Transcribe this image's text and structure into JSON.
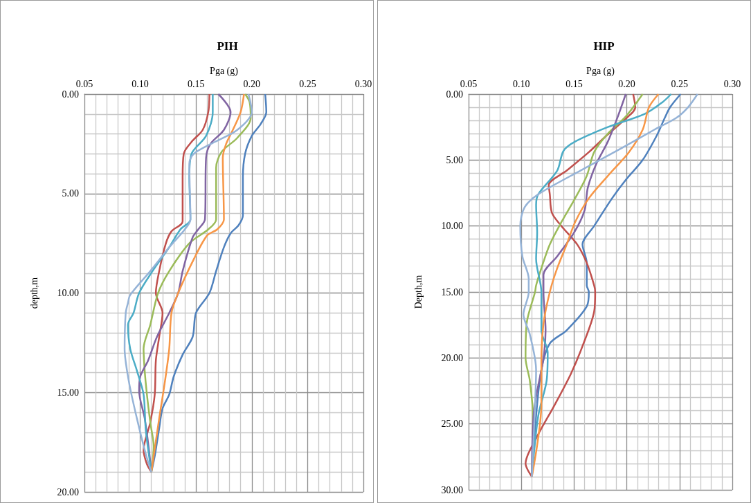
{
  "chart_data": [
    {
      "type": "line",
      "title": "PIH",
      "xlabel": "Pga (g)",
      "ylabel": "depth,m",
      "xlim": [
        0.05,
        0.3
      ],
      "xticks": [
        {
          "value": 0.05,
          "label": "0.05"
        },
        {
          "value": 0.1,
          "label": "0.10"
        },
        {
          "value": 0.15,
          "label": "0.15"
        },
        {
          "value": 0.2,
          "label": "0.20"
        },
        {
          "value": 0.25,
          "label": "0.25"
        },
        {
          "value": 0.3,
          "label": "0.30"
        }
      ],
      "ylim": [
        20,
        0
      ],
      "yticks": [
        {
          "value": 0,
          "label": "0.00"
        },
        {
          "value": 5,
          "label": "5.00"
        },
        {
          "value": 10,
          "label": "10.00"
        },
        {
          "value": 15,
          "label": "15.00"
        },
        {
          "value": 20,
          "label": "20.00"
        }
      ],
      "grid": true,
      "series": [
        {
          "color": "#4f81bd",
          "x": [
            0.212,
            0.213,
            0.208,
            0.2,
            0.194,
            0.192,
            0.192,
            0.188,
            0.181,
            0.175,
            0.168,
            0.162,
            0.15,
            0.147,
            0.138,
            0.13,
            0.126,
            0.12,
            0.117,
            0.113,
            0.11
          ],
          "values": [
            0,
            0.9,
            1.5,
            2.1,
            3.0,
            4.2,
            6.1,
            6.6,
            7.0,
            7.7,
            8.9,
            10.0,
            11.0,
            12.2,
            13.1,
            14.2,
            15.1,
            15.8,
            16.8,
            18.2,
            19.0
          ]
        },
        {
          "color": "#c0504d",
          "x": [
            0.162,
            0.161,
            0.156,
            0.146,
            0.139,
            0.138,
            0.138,
            0.128,
            0.123,
            0.117,
            0.114,
            0.12,
            0.117,
            0.114,
            0.113,
            0.109,
            0.103,
            0.106,
            0.11
          ],
          "values": [
            0,
            0.9,
            1.8,
            2.4,
            3.0,
            4.2,
            6.4,
            6.9,
            7.5,
            8.9,
            10.0,
            11.0,
            12.2,
            13.4,
            15.1,
            16.5,
            17.9,
            18.6,
            19.0
          ]
        },
        {
          "color": "#9bbb59",
          "x": [
            0.194,
            0.198,
            0.199,
            0.187,
            0.173,
            0.168,
            0.168,
            0.161,
            0.144,
            0.126,
            0.116,
            0.109,
            0.103,
            0.104,
            0.106,
            0.109,
            0.112,
            0.11
          ],
          "values": [
            0,
            0.4,
            1.2,
            2.2,
            2.9,
            3.7,
            6.3,
            6.8,
            7.5,
            8.9,
            10.0,
            11.6,
            12.8,
            13.9,
            15.1,
            16.5,
            17.7,
            19.0
          ]
        },
        {
          "color": "#8064a2",
          "x": [
            0.17,
            0.181,
            0.175,
            0.163,
            0.159,
            0.158,
            0.152,
            0.147,
            0.138,
            0.134,
            0.126,
            0.115,
            0.107,
            0.1,
            0.099,
            0.104,
            0.107,
            0.11
          ],
          "values": [
            0,
            0.9,
            1.8,
            2.5,
            3.2,
            6.3,
            6.8,
            7.2,
            8.9,
            10.0,
            11.0,
            12.2,
            13.4,
            14.2,
            14.9,
            16.3,
            17.5,
            19.0
          ]
        },
        {
          "color": "#4bacc6",
          "x": [
            0.165,
            0.165,
            0.159,
            0.146,
            0.144,
            0.145,
            0.136,
            0.126,
            0.111,
            0.099,
            0.094,
            0.089,
            0.091,
            0.097,
            0.103,
            0.105,
            0.11
          ],
          "values": [
            0,
            0.9,
            2.1,
            3.0,
            4.2,
            6.3,
            6.8,
            7.7,
            8.9,
            10.0,
            11.0,
            11.6,
            12.8,
            13.9,
            15.1,
            16.9,
            19.0
          ]
        },
        {
          "color": "#f79646",
          "x": [
            0.193,
            0.19,
            0.183,
            0.177,
            0.174,
            0.175,
            0.169,
            0.16,
            0.148,
            0.134,
            0.128,
            0.126,
            0.122,
            0.117,
            0.11
          ],
          "values": [
            0,
            0.9,
            1.8,
            2.5,
            3.2,
            6.3,
            6.8,
            7.1,
            8.3,
            10.0,
            11.0,
            12.8,
            14.5,
            16.3,
            19.0
          ]
        },
        {
          "color": "#95b3d7",
          "x": [
            0.197,
            0.2,
            0.187,
            0.167,
            0.148,
            0.144,
            0.145,
            0.14,
            0.126,
            0.109,
            0.091,
            0.089,
            0.087,
            0.086,
            0.09,
            0.097,
            0.105,
            0.11
          ],
          "values": [
            0,
            0.9,
            1.8,
            2.4,
            3.0,
            3.5,
            6.3,
            6.8,
            7.7,
            8.9,
            10.1,
            10.5,
            11.0,
            12.8,
            14.5,
            16.3,
            18.1,
            19.0
          ]
        }
      ]
    },
    {
      "type": "line",
      "title": "HIP",
      "xlabel": "Pga (g)",
      "ylabel": "Depth,m",
      "xlim": [
        0.05,
        0.3
      ],
      "xticks": [
        {
          "value": 0.05,
          "label": "0.05"
        },
        {
          "value": 0.1,
          "label": "0.10"
        },
        {
          "value": 0.15,
          "label": "0.15"
        },
        {
          "value": 0.2,
          "label": "0.20"
        },
        {
          "value": 0.25,
          "label": "0.25"
        },
        {
          "value": 0.3,
          "label": "0.30"
        }
      ],
      "ylim": [
        30,
        0
      ],
      "yticks": [
        {
          "value": 0,
          "label": "0.00"
        },
        {
          "value": 5,
          "label": "5.00"
        },
        {
          "value": 10,
          "label": "10.00"
        },
        {
          "value": 15,
          "label": "15.00"
        },
        {
          "value": 20,
          "label": "20.00"
        },
        {
          "value": 25,
          "label": "25.00"
        },
        {
          "value": 30,
          "label": "30.00"
        }
      ],
      "grid": true,
      "series": [
        {
          "color": "#4f81bd",
          "x": [
            0.251,
            0.241,
            0.236,
            0.228,
            0.215,
            0.199,
            0.186,
            0.169,
            0.158,
            0.162,
            0.162,
            0.164,
            0.162,
            0.143,
            0.127,
            0.119,
            0.114,
            0.11
          ],
          "values": [
            0,
            1.0,
            1.8,
            3.2,
            5.0,
            6.5,
            7.9,
            10.0,
            11.4,
            12.8,
            14.5,
            15.0,
            16.1,
            17.9,
            18.9,
            20.9,
            24.4,
            29.0
          ]
        },
        {
          "color": "#c0504d",
          "x": [
            0.206,
            0.208,
            0.197,
            0.18,
            0.164,
            0.143,
            0.126,
            0.127,
            0.129,
            0.138,
            0.153,
            0.162,
            0.169,
            0.17,
            0.169,
            0.158,
            0.147,
            0.132,
            0.114,
            0.104,
            0.11
          ],
          "values": [
            0,
            1.0,
            2.0,
            3.2,
            4.4,
            5.8,
            6.9,
            7.6,
            9.0,
            10.0,
            11.4,
            12.8,
            14.5,
            15.0,
            16.5,
            19.1,
            21.2,
            23.5,
            26.1,
            28.0,
            29.0
          ]
        },
        {
          "color": "#9bbb59",
          "x": [
            0.215,
            0.199,
            0.182,
            0.169,
            0.162,
            0.151,
            0.138,
            0.127,
            0.119,
            0.114,
            0.113,
            0.105,
            0.104,
            0.108,
            0.111,
            0.11
          ],
          "values": [
            0,
            1.7,
            3.0,
            4.4,
            6.2,
            7.9,
            9.7,
            11.4,
            13.2,
            14.5,
            15.0,
            17.4,
            20.0,
            21.7,
            24.4,
            29.0
          ]
        },
        {
          "color": "#8064a2",
          "x": [
            0.199,
            0.191,
            0.182,
            0.171,
            0.163,
            0.16,
            0.15,
            0.134,
            0.121,
            0.121,
            0.123,
            0.121,
            0.112,
            0.11
          ],
          "values": [
            0,
            1.8,
            3.6,
            5.3,
            7.1,
            8.8,
            10.5,
            12.3,
            13.7,
            15.0,
            17.9,
            20.0,
            24.0,
            29.0
          ]
        },
        {
          "color": "#4bacc6",
          "x": [
            0.242,
            0.234,
            0.217,
            0.182,
            0.151,
            0.14,
            0.134,
            0.116,
            0.114,
            0.115,
            0.114,
            0.119,
            0.119,
            0.125,
            0.124,
            0.116,
            0.11
          ],
          "values": [
            0,
            0.6,
            1.5,
            2.5,
            3.6,
            4.3,
            5.8,
            7.6,
            8.4,
            10.5,
            12.5,
            15.0,
            17.9,
            19.6,
            21.7,
            24.4,
            29.0
          ]
        },
        {
          "color": "#f79646",
          "x": [
            0.23,
            0.221,
            0.215,
            0.202,
            0.182,
            0.164,
            0.151,
            0.143,
            0.134,
            0.127,
            0.121,
            0.119,
            0.119,
            0.11
          ],
          "values": [
            0,
            1.0,
            2.7,
            4.4,
            6.2,
            7.9,
            9.7,
            11.4,
            13.2,
            15.0,
            17.4,
            20.0,
            23.5,
            29.0
          ]
        },
        {
          "color": "#95b3d7",
          "x": [
            0.267,
            0.258,
            0.247,
            0.226,
            0.195,
            0.156,
            0.116,
            0.103,
            0.099,
            0.101,
            0.107,
            0.107,
            0.102,
            0.108,
            0.114,
            0.113,
            0.11
          ],
          "values": [
            0,
            1.0,
            1.8,
            2.7,
            4.1,
            5.8,
            7.6,
            8.6,
            10.0,
            12.3,
            14.0,
            15.0,
            16.7,
            18.2,
            20.9,
            23.5,
            29.0
          ]
        }
      ]
    }
  ]
}
